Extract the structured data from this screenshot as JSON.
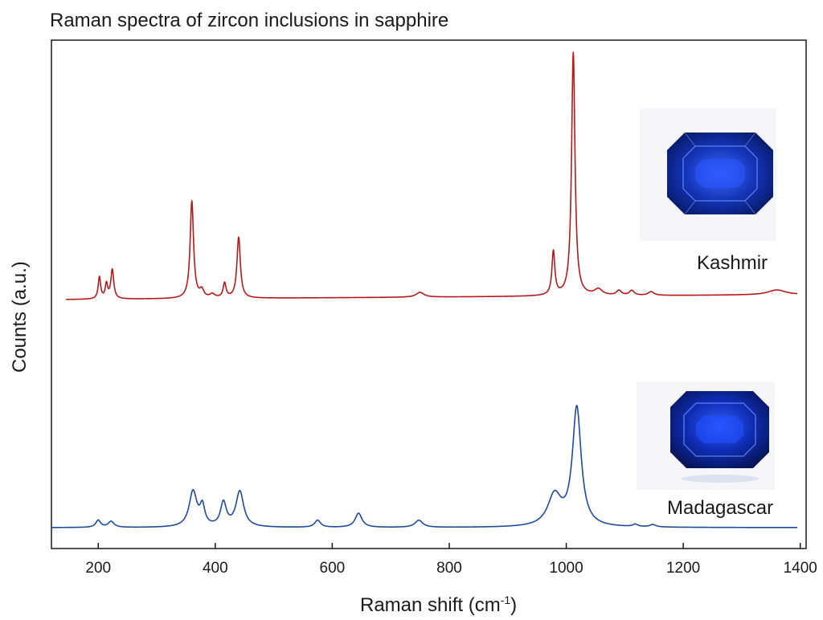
{
  "chart_data": {
    "type": "line",
    "title": "Raman spectra of zircon inclusions in sapphire",
    "xlabel": "Raman shift (cm",
    "xlabel_sup": "-1",
    "xlabel_close": ")",
    "ylabel": "Counts (a.u.)",
    "xlim": [
      120,
      1410
    ],
    "xticks": [
      200,
      400,
      600,
      800,
      1000,
      1200,
      1400
    ],
    "y_ticks_labeled": false,
    "grid": false,
    "series": [
      {
        "name": "Kashmir",
        "color": "#b5191c",
        "x_range": [
          145,
          1395
        ],
        "baseline": 0.02,
        "peaks": [
          {
            "x": 202,
            "h": 0.09,
            "w": 2.5
          },
          {
            "x": 214,
            "h": 0.06,
            "w": 2.5
          },
          {
            "x": 224,
            "h": 0.12,
            "w": 3
          },
          {
            "x": 360,
            "h": 0.4,
            "w": 3.5
          },
          {
            "x": 377,
            "h": 0.03,
            "w": 4
          },
          {
            "x": 395,
            "h": 0.015,
            "w": 5
          },
          {
            "x": 416,
            "h": 0.06,
            "w": 3
          },
          {
            "x": 440,
            "h": 0.25,
            "w": 3.5
          },
          {
            "x": 750,
            "h": 0.02,
            "w": 8
          },
          {
            "x": 978,
            "h": 0.18,
            "w": 3
          },
          {
            "x": 1012,
            "h": 1.0,
            "w": 3.5
          },
          {
            "x": 1055,
            "h": 0.025,
            "w": 8
          },
          {
            "x": 1090,
            "h": 0.02,
            "w": 5
          },
          {
            "x": 1112,
            "h": 0.02,
            "w": 5
          },
          {
            "x": 1145,
            "h": 0.015,
            "w": 6
          },
          {
            "x": 1360,
            "h": 0.02,
            "w": 18
          }
        ],
        "annotation": "Kashmir",
        "image_caption": "Kashmir sapphire photo"
      },
      {
        "name": "Madagascar",
        "color": "#1f4a9c",
        "x_range": [
          120,
          1395
        ],
        "baseline": 0.0,
        "peaks": [
          {
            "x": 200,
            "h": 0.03,
            "w": 5
          },
          {
            "x": 222,
            "h": 0.025,
            "w": 6
          },
          {
            "x": 362,
            "h": 0.15,
            "w": 8
          },
          {
            "x": 378,
            "h": 0.08,
            "w": 5
          },
          {
            "x": 414,
            "h": 0.1,
            "w": 6
          },
          {
            "x": 442,
            "h": 0.15,
            "w": 8
          },
          {
            "x": 575,
            "h": 0.03,
            "w": 6
          },
          {
            "x": 645,
            "h": 0.06,
            "w": 7
          },
          {
            "x": 748,
            "h": 0.03,
            "w": 8
          },
          {
            "x": 980,
            "h": 0.13,
            "w": 14
          },
          {
            "x": 1018,
            "h": 0.5,
            "w": 9
          },
          {
            "x": 1118,
            "h": 0.01,
            "w": 5
          },
          {
            "x": 1148,
            "h": 0.01,
            "w": 6
          }
        ],
        "annotation": "Madagascar",
        "image_caption": "Madagascar sapphire photo"
      }
    ]
  }
}
